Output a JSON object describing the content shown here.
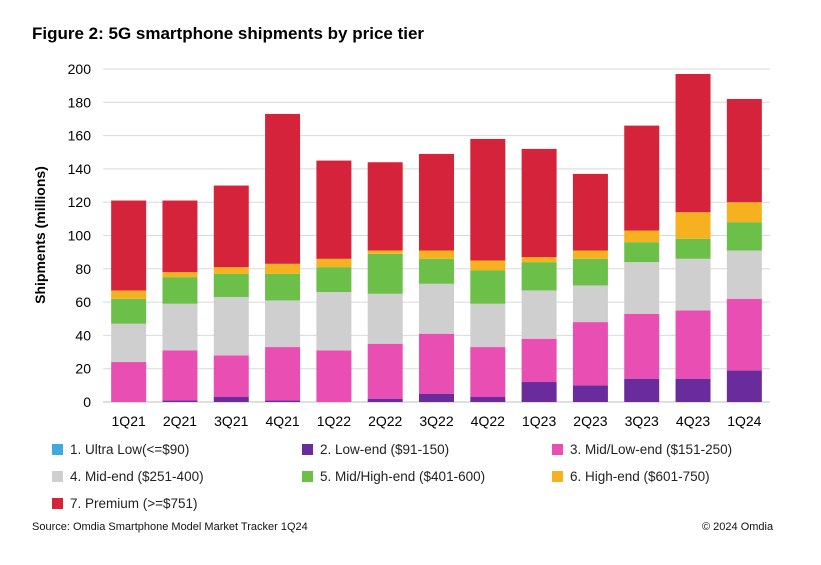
{
  "title": "Figure 2: 5G smartphone shipments by price tier",
  "source": "Source: Omdia Smartphone Model Market Tracker 1Q24",
  "copyright": "© 2024 Omdia",
  "chart_data": {
    "type": "bar",
    "stacked": true,
    "title": "Figure 2: 5G smartphone shipments by price tier",
    "xlabel": "",
    "ylabel": "Shipments (millions)",
    "ylim": [
      0,
      200
    ],
    "yticks": [
      0,
      20,
      40,
      60,
      80,
      100,
      120,
      140,
      160,
      180,
      200
    ],
    "grid": true,
    "legend_position": "bottom",
    "categories": [
      "1Q21",
      "2Q21",
      "3Q21",
      "4Q21",
      "1Q22",
      "2Q22",
      "3Q22",
      "4Q22",
      "1Q23",
      "2Q23",
      "3Q23",
      "4Q23",
      "1Q24"
    ],
    "series": [
      {
        "name": "1. Ultra Low(<=$90)",
        "color": "#3fa9e0",
        "values": [
          0,
          0,
          0,
          0,
          0,
          0,
          0,
          0,
          0,
          0,
          0,
          0,
          0
        ]
      },
      {
        "name": "2. Low-end ($91-150)",
        "color": "#6a2c9c",
        "values": [
          0,
          1,
          3,
          1,
          0,
          2,
          5,
          3,
          12,
          10,
          14,
          14,
          19
        ]
      },
      {
        "name": "3. Mid/Low-end ($151-250)",
        "color": "#e94fb3",
        "values": [
          24,
          30,
          25,
          32,
          31,
          33,
          36,
          30,
          26,
          38,
          39,
          41,
          43
        ]
      },
      {
        "name": "4. Mid-end ($251-400)",
        "color": "#cfcfcf",
        "values": [
          23,
          28,
          35,
          28,
          35,
          30,
          30,
          26,
          29,
          22,
          31,
          31,
          29
        ]
      },
      {
        "name": "5. Mid/High-end ($401-600)",
        "color": "#6cc04a",
        "values": [
          15,
          16,
          14,
          16,
          15,
          24,
          15,
          20,
          17,
          16,
          12,
          12,
          17
        ]
      },
      {
        "name": "6. High-end ($601-750)",
        "color": "#f5b120",
        "values": [
          5,
          3,
          4,
          6,
          5,
          2,
          5,
          6,
          3,
          5,
          7,
          16,
          12
        ]
      },
      {
        "name": "7. Premium (>=$751)",
        "color": "#d6233c",
        "values": [
          54,
          43,
          49,
          90,
          59,
          53,
          58,
          73,
          65,
          46,
          63,
          83,
          62
        ]
      }
    ]
  }
}
